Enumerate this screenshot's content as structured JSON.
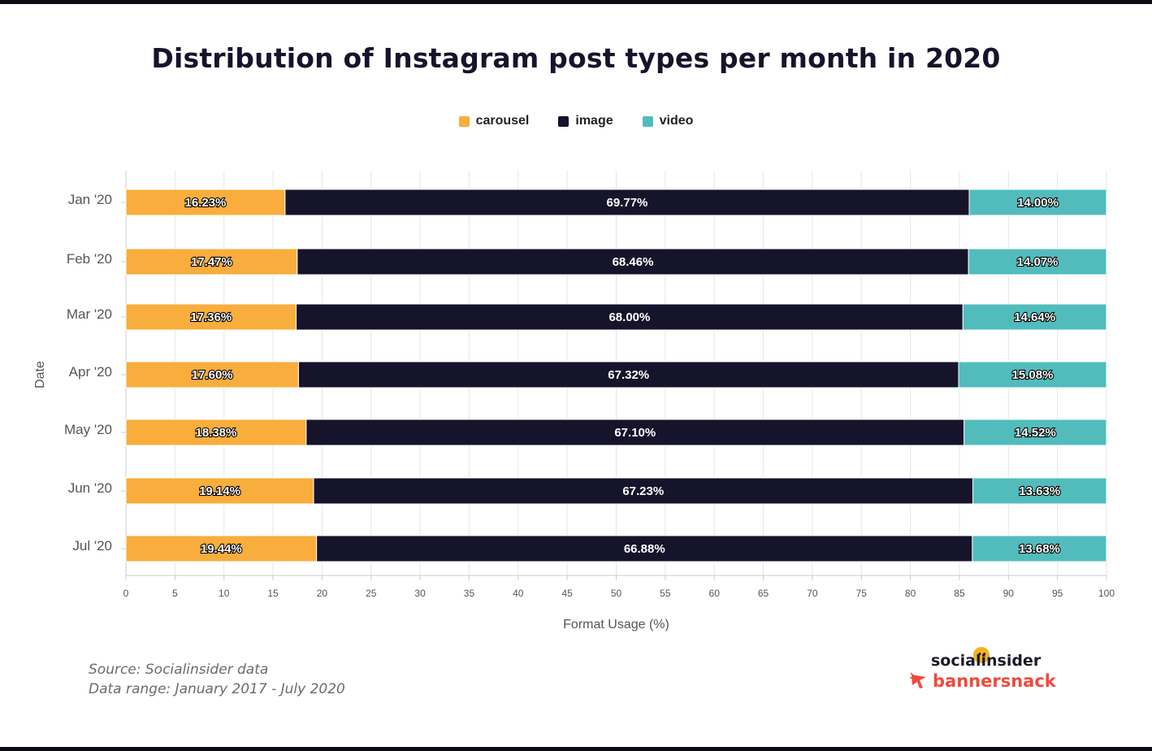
{
  "title": "Distribution of Instagram post types per month in 2020",
  "colors": {
    "carousel": "#f9ad3c",
    "image": "#15142b",
    "video": "#52bcbd"
  },
  "legend": [
    {
      "label": "carousel",
      "color": "#f9ad3c"
    },
    {
      "label": "image",
      "color": "#15142b"
    },
    {
      "label": "video",
      "color": "#52bcbd"
    }
  ],
  "chart_data": {
    "type": "bar",
    "orientation": "horizontal",
    "stacked": true,
    "categories": [
      "Jan '20",
      "Feb '20",
      "Mar '20",
      "Apr '20",
      "May '20",
      "Jun '20",
      "Jul '20"
    ],
    "series": [
      {
        "name": "carousel",
        "values": [
          16.23,
          17.47,
          17.36,
          17.6,
          18.38,
          19.14,
          19.44
        ],
        "labels": [
          "16.23%",
          "17.47%",
          "17.36%",
          "17.60%",
          "18.38%",
          "19.14%",
          "19.44%"
        ]
      },
      {
        "name": "image",
        "values": [
          69.77,
          68.46,
          68.0,
          67.32,
          67.1,
          67.23,
          66.88
        ],
        "labels": [
          "69.77%",
          "68.46%",
          "68.00%",
          "67.32%",
          "67.10%",
          "67.23%",
          "66.88%"
        ]
      },
      {
        "name": "video",
        "values": [
          14.0,
          14.07,
          14.64,
          15.08,
          14.52,
          13.63,
          13.68
        ],
        "labels": [
          "14.00%",
          "14.07%",
          "14.64%",
          "15.08%",
          "14.52%",
          "13.63%",
          "13.68%"
        ]
      }
    ],
    "xlabel": "Format Usage (%)",
    "ylabel": "Date",
    "xlim": [
      0,
      100
    ],
    "xticks": [
      "0",
      "5",
      "10",
      "15",
      "20",
      "25",
      "30",
      "35",
      "40",
      "45",
      "50",
      "55",
      "60",
      "65",
      "70",
      "75",
      "80",
      "85",
      "90",
      "95",
      "100"
    ],
    "grid": true,
    "legend_position": "top-center"
  },
  "footer": {
    "source": "Source: Socialinsider data",
    "range": "Data range: January 2017 - July 2020"
  },
  "logos": {
    "socialinsider": "socialinsider",
    "bannersnack": "bannersnack"
  }
}
